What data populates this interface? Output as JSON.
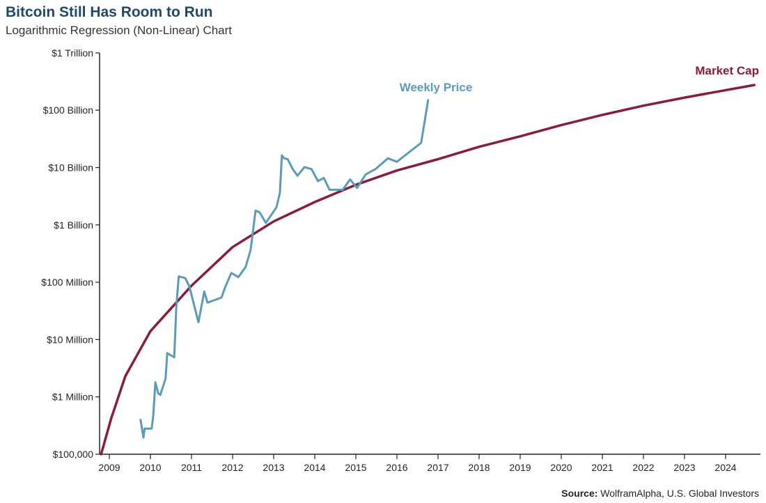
{
  "chart_data": {
    "type": "line",
    "title": "Bitcoin Still Has Room to Run",
    "subtitle": "Logarithmic Regression (Non-Linear) Chart",
    "xlabel": "",
    "ylabel": "",
    "y_scale": "log",
    "ylim": [
      100000,
      1000000000000
    ],
    "xlim": [
      2008.8,
      2024.7
    ],
    "grid": false,
    "x_ticks": [
      "2009",
      "2010",
      "2011",
      "2012",
      "2013",
      "2014",
      "2015",
      "2016",
      "2017",
      "2018",
      "2019",
      "2020",
      "2021",
      "2022",
      "2023",
      "2024"
    ],
    "y_ticks": [
      {
        "value": 100000,
        "label": "$100,000"
      },
      {
        "value": 1000000,
        "label": "$1 Million"
      },
      {
        "value": 10000000,
        "label": "$10 Million"
      },
      {
        "value": 100000000,
        "label": "$100 Million"
      },
      {
        "value": 1000000000,
        "label": "$1 Billion"
      },
      {
        "value": 10000000000,
        "label": "$10 Billion"
      },
      {
        "value": 100000000000,
        "label": "$100 Billion"
      },
      {
        "value": 1000000000000,
        "label": "$1 Trillion"
      }
    ],
    "series": [
      {
        "name": "Market Cap",
        "color": "#8c1a3c",
        "x": [
          2008.8,
          2009.05,
          2009.39,
          2010,
          2011,
          2012,
          2013,
          2014,
          2015,
          2016,
          2017,
          2018,
          2019,
          2020,
          2021,
          2022,
          2023,
          2024.7
        ],
        "values": [
          100000.0,
          430000.0,
          2300000.0,
          14000000.0,
          87000000.0,
          410000000.0,
          1150000000.0,
          2500000000.0,
          5000000000.0,
          8900000000.0,
          14000000000.0,
          23000000000.0,
          35000000000.0,
          55000000000.0,
          83000000000.0,
          120000000000.0,
          166000000000.0,
          275000000000.0
        ]
      },
      {
        "name": "Weekly Price",
        "color": "#5a9abb",
        "x": [
          2009.76,
          2009.83,
          2009.86,
          2010.03,
          2010.07,
          2010.12,
          2010.19,
          2010.24,
          2010.37,
          2010.41,
          2010.58,
          2010.63,
          2010.69,
          2010.85,
          2010.95,
          2011.17,
          2011.31,
          2011.39,
          2011.73,
          2011.81,
          2011.97,
          2012.14,
          2012.32,
          2012.44,
          2012.56,
          2012.66,
          2012.81,
          2013.07,
          2013.15,
          2013.2,
          2013.25,
          2013.34,
          2013.46,
          2013.58,
          2013.75,
          2013.92,
          2014.08,
          2014.22,
          2014.36,
          2014.68,
          2014.86,
          2015.03,
          2015.24,
          2015.49,
          2015.78,
          2016.0,
          2016.59,
          2016.76
        ],
        "values": [
          400000.0,
          195000.0,
          280000.0,
          280000.0,
          470000.0,
          1800000.0,
          1150000.0,
          1080000.0,
          2100000.0,
          5800000.0,
          4900000.0,
          38000000.0,
          126000000.0,
          118000000.0,
          83000000.0,
          20000000.0,
          69000000.0,
          44000000.0,
          54000000.0,
          79000000.0,
          145000000.0,
          123000000.0,
          186000000.0,
          372000000.0,
          1780000000.0,
          1650000000.0,
          1080000000.0,
          2040000000.0,
          3600000000.0,
          16300000000.0,
          14500000000.0,
          14000000000.0,
          9500000000.0,
          7200000000.0,
          10200000000.0,
          9400000000.0,
          5800000000.0,
          6600000000.0,
          4100000000.0,
          4100000000.0,
          6200000000.0,
          4400000000.0,
          7600000000.0,
          9500000000.0,
          14500000000.0,
          12600000000.0,
          27000000000.0,
          150000000000.0
        ]
      }
    ],
    "source_label": "Source:",
    "source_text": "WolframAlpha, U.S. Global Investors"
  }
}
